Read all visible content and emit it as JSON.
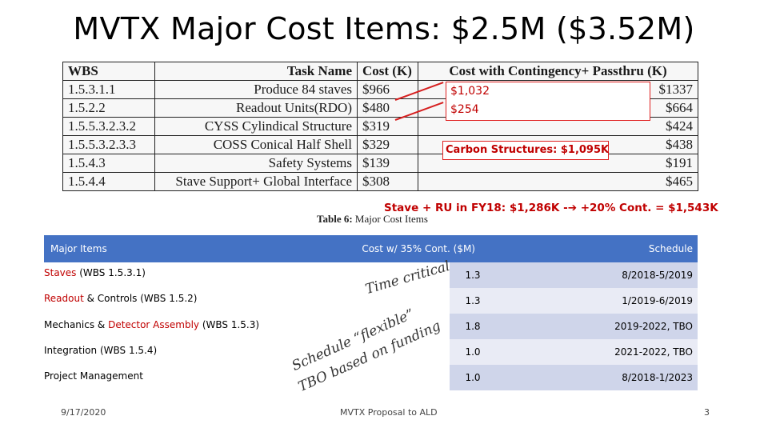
{
  "title": "MVTX Major Cost Items: $2.5M ($3.52M)",
  "wbs_table": {
    "headers": [
      "WBS",
      "Task Name",
      "Cost (K)",
      "Cost with Contingency+ Passthru (K)"
    ],
    "rows": [
      {
        "wbs": "1.5.3.1.1",
        "task": "Produce 84 staves",
        "cost": "$966",
        "cont": "$1337"
      },
      {
        "wbs": "1.5.2.2",
        "task": "Readout Units(RDO)",
        "cost": "$480",
        "cont": "$664"
      },
      {
        "wbs": "1.5.5.3.2.3.2",
        "task": "CYSS Cylindical Structure",
        "cost": "$319",
        "cont": "$424"
      },
      {
        "wbs": "1.5.5.3.2.3.3",
        "task": "COSS Conical Half Shell",
        "cost": "$329",
        "cont": "$438"
      },
      {
        "wbs": "1.5.4.3",
        "task": "Safety Systems",
        "cost": "$139",
        "cont": "$191"
      },
      {
        "wbs": "1.5.4.4",
        "task": "Stave Support+ Global Interface",
        "cost": "$308",
        "cont": "$465"
      }
    ],
    "caption_bold": "Table 6:",
    "caption_text": " Major Cost Items"
  },
  "annotations": {
    "staves_new": "$1,032",
    "rdo_new": "$254",
    "carbon": "Carbon Structures: $1,095K",
    "stave_ru": "Stave + RU in FY18: $1,286K -",
    "arrow": "➔",
    "stave_ru_tail": " +20% Cont. = $1,543K"
  },
  "bottom_table": {
    "headers": {
      "items": "Major Items",
      "cost": "Cost w/ 35% Cont. ($M)",
      "schedule": "Schedule"
    },
    "rows": [
      {
        "label_parts": [
          "Staves",
          " (WBS 1.5.3.1)"
        ],
        "cost": "1.3",
        "schedule": "8/2018-5/2019"
      },
      {
        "label_parts": [
          "Readout",
          " & Controls (WBS 1.5.2)"
        ],
        "cost": "1.3",
        "schedule": "1/2019-6/2019"
      },
      {
        "label_parts": [
          "Mechanics & ",
          "Detector Assembly",
          " (WBS 1.5.3)"
        ],
        "cost": "1.8",
        "schedule": "2019-2022, TBO"
      },
      {
        "label_parts": [
          "Integration (WBS 1.5.4)"
        ],
        "cost": "1.0",
        "schedule": "2021-2022, TBO"
      },
      {
        "label_parts": [
          "Project Management"
        ],
        "cost": "1.0",
        "schedule": "8/2018-1/2023"
      }
    ]
  },
  "diagonal_notes": {
    "critical": "Time critical",
    "flexible": "Schedule “flexible”",
    "funding": "TBO based on funding"
  },
  "footer": {
    "date": "9/17/2020",
    "center": "MVTX Proposal to ALD",
    "page": "3"
  },
  "colors": {
    "header_blue": "#4472c4",
    "row_shade": "#cfd5ea",
    "row_light": "#e9ebf5",
    "annotation_red": "#c00000"
  }
}
